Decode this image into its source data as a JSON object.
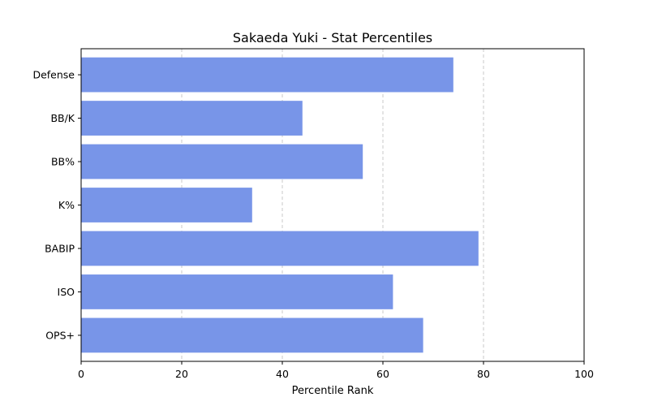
{
  "chart_data": {
    "type": "bar",
    "orientation": "horizontal",
    "title": "Sakaeda Yuki - Stat Percentiles",
    "xlabel": "Percentile Rank",
    "ylabel": "",
    "categories": [
      "OPS+",
      "ISO",
      "BABIP",
      "K%",
      "BB%",
      "BB/K",
      "Defense"
    ],
    "values": [
      68,
      62,
      79,
      34,
      56,
      44,
      74
    ],
    "xlim": [
      0,
      100
    ],
    "xticks": [
      0,
      20,
      40,
      60,
      80,
      100
    ],
    "grid": "x-dashed",
    "bar_color": "#7895e8"
  }
}
